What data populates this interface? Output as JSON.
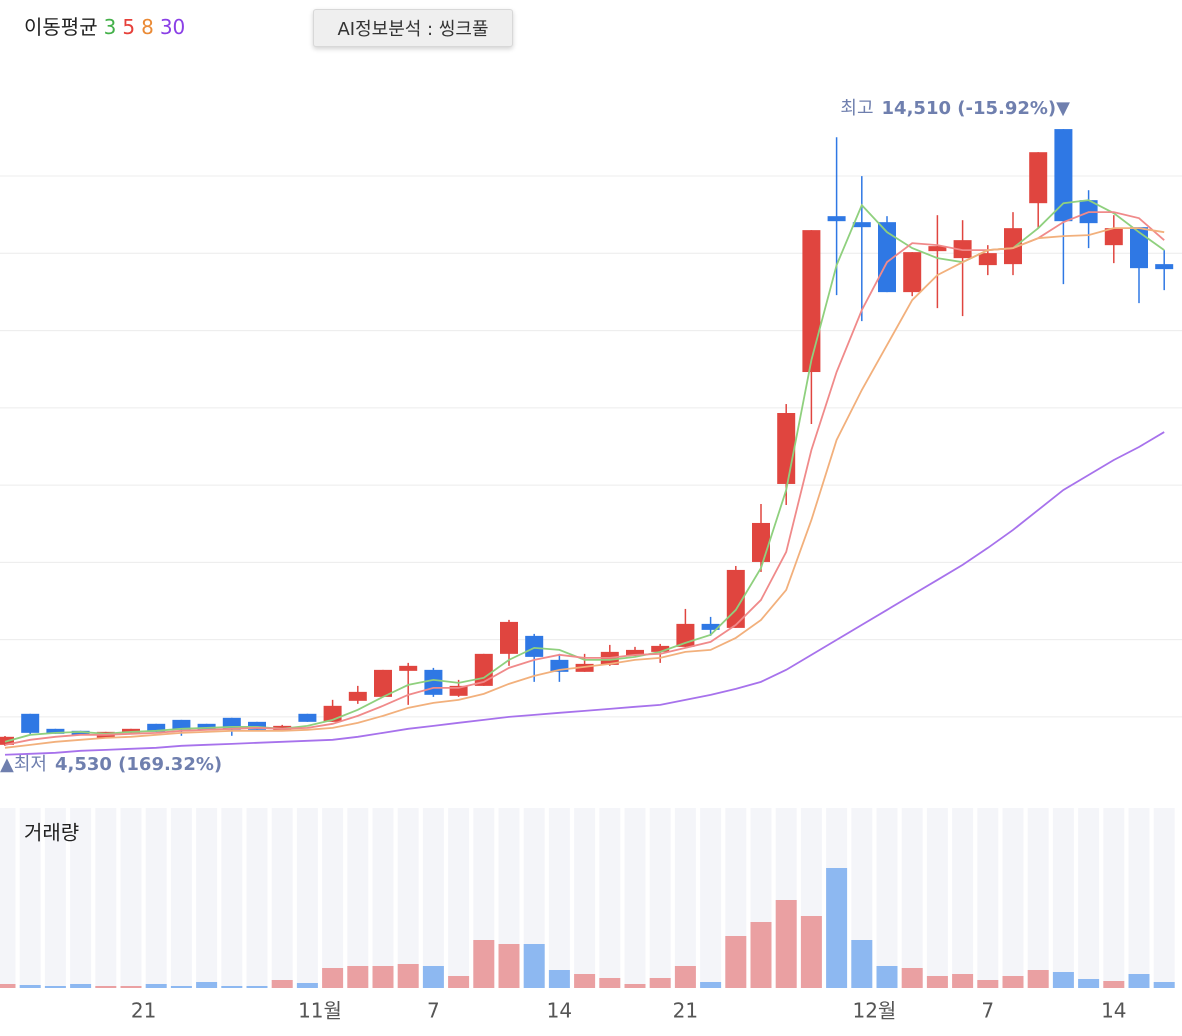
{
  "button": "AI정보분석 : 씽크풀",
  "chart_data": [
    {
      "type": "candlestick",
      "title": "이동평균",
      "ylim": [
        3800,
        16000
      ],
      "yticks": [
        5000,
        6250,
        7500,
        8750,
        10000,
        11250,
        12500,
        13750
      ],
      "grid": true,
      "up_color": "#e0453f",
      "down_color": "#2f78e4",
      "open": [
        4547,
        5049,
        4806,
        4774,
        4660,
        4741,
        4887,
        4951,
        4887,
        4984,
        4919,
        4774,
        5049,
        4919,
        5259,
        5323,
        5744,
        5760,
        5340,
        5501,
        6019,
        6310,
        5922,
        5728,
        5841,
        5986,
        6051,
        6132,
        6504,
        6439,
        7506,
        8768,
        10579,
        13101,
        13004,
        13004,
        11872,
        12535,
        12422,
        12309,
        12325,
        13311,
        14510,
        13360,
        12632,
        12923,
        12325
      ],
      "high": [
        4690,
        5049,
        4806,
        4774,
        4757,
        4806,
        4887,
        4951,
        4887,
        4984,
        4919,
        4870,
        5049,
        5275,
        5501,
        5760,
        5873,
        5792,
        5598,
        6019,
        6569,
        6342,
        6019,
        6019,
        6164,
        6132,
        6180,
        6746,
        6617,
        7441,
        8444,
        10061,
        12875,
        14378,
        13749,
        13101,
        12519,
        13117,
        13036,
        12632,
        13166,
        14136,
        14510,
        13521,
        13117,
        12923,
        12551
      ],
      "low": [
        4530,
        4720,
        4725,
        4709,
        4660,
        4741,
        4757,
        4693,
        4790,
        4693,
        4790,
        4774,
        4919,
        4919,
        5210,
        5323,
        5194,
        5323,
        5323,
        5501,
        5825,
        5566,
        5566,
        5728,
        5825,
        5986,
        5873,
        6132,
        6310,
        6439,
        7344,
        8428,
        9738,
        11823,
        11403,
        11872,
        11807,
        11613,
        11484,
        12147,
        12147,
        12907,
        12002,
        12584,
        12341,
        11694,
        11904
      ],
      "close": [
        4677,
        4741,
        4725,
        4709,
        4757,
        4806,
        4757,
        4790,
        4790,
        4790,
        4790,
        4854,
        4919,
        5178,
        5404,
        5760,
        5825,
        5356,
        5501,
        6019,
        6536,
        5970,
        5728,
        5857,
        6051,
        6083,
        6148,
        6504,
        6407,
        7377,
        8137,
        9916,
        12875,
        13020,
        12923,
        11872,
        12519,
        12616,
        12713,
        12503,
        12907,
        14136,
        13020,
        12988,
        12907,
        12260,
        12244
      ],
      "series": [
        {
          "name": "3",
          "color": "#8fd07e",
          "label_color": "#43b049",
          "values": [
            4596,
            4709,
            4741,
            4757,
            4725,
            4757,
            4774,
            4806,
            4822,
            4838,
            4838,
            4806,
            4854,
            4951,
            5113,
            5323,
            5517,
            5598,
            5550,
            5631,
            5922,
            6116,
            6083,
            5922,
            5922,
            5970,
            6051,
            6197,
            6326,
            6730,
            7409,
            8671,
            10773,
            12309,
            13279,
            12842,
            12584,
            12422,
            12357,
            12551,
            12584,
            12907,
            13311,
            13360,
            13150,
            12842,
            12551
          ]
        },
        {
          "name": "5",
          "color": "#f08a8a",
          "label_color": "#e6403a",
          "values": [
            4547,
            4628,
            4677,
            4709,
            4709,
            4725,
            4741,
            4774,
            4790,
            4806,
            4822,
            4806,
            4822,
            4887,
            5016,
            5178,
            5356,
            5469,
            5469,
            5566,
            5792,
            5922,
            6003,
            5954,
            5954,
            6003,
            6019,
            6116,
            6213,
            6488,
            6892,
            7668,
            9317,
            10579,
            11581,
            12357,
            12665,
            12632,
            12551,
            12551,
            12584,
            12745,
            13004,
            13166,
            13166,
            13069,
            12713
          ]
        },
        {
          "name": "8",
          "color": "#f2b07c",
          "label_color": "#ea8a35",
          "values": [
            4499,
            4547,
            4596,
            4628,
            4660,
            4677,
            4709,
            4741,
            4757,
            4774,
            4774,
            4774,
            4790,
            4822,
            4903,
            5016,
            5146,
            5226,
            5275,
            5372,
            5534,
            5663,
            5760,
            5809,
            5857,
            5922,
            5954,
            6051,
            6083,
            6277,
            6568,
            7054,
            8185,
            9479,
            10288,
            11015,
            11743,
            12147,
            12357,
            12551,
            12584,
            12745,
            12778,
            12794,
            12907,
            12907,
            12842
          ]
        },
        {
          "name": "30",
          "color": "#a772ec",
          "label_color": "#8a3fe6",
          "values": [
            4386,
            4402,
            4418,
            4450,
            4466,
            4483,
            4499,
            4531,
            4547,
            4563,
            4580,
            4596,
            4612,
            4628,
            4677,
            4741,
            4806,
            4854,
            4903,
            4951,
            5000,
            5032,
            5065,
            5097,
            5129,
            5162,
            5194,
            5275,
            5356,
            5453,
            5566,
            5760,
            6003,
            6245,
            6488,
            6730,
            6973,
            7215,
            7458,
            7733,
            8024,
            8347,
            8671,
            8913,
            9156,
            9366,
            9608
          ]
        }
      ],
      "annotations": [
        {
          "label": "최고",
          "text": "14,510 (-15.92%)▼"
        },
        {
          "label": "▲최저",
          "text": "4,530 (169.32%)"
        }
      ],
      "xticks": [
        {
          "value": 5.5,
          "label": "21"
        },
        {
          "value": 12.5,
          "label": "11월"
        },
        {
          "value": 17,
          "label": "7"
        },
        {
          "value": 22,
          "label": "14"
        },
        {
          "value": 27,
          "label": "21"
        },
        {
          "value": 34.5,
          "label": "12월"
        },
        {
          "value": 39,
          "label": "7"
        },
        {
          "value": 44,
          "label": "14"
        }
      ]
    },
    {
      "type": "bar",
      "title": "거래량",
      "ylim": [
        0,
        1800
      ],
      "up_color": "#eaa0a2",
      "down_color": "#8db8f1",
      "values": [
        40,
        30,
        20,
        40,
        20,
        20,
        40,
        20,
        60,
        20,
        20,
        80,
        50,
        200,
        220,
        220,
        240,
        220,
        120,
        480,
        440,
        440,
        180,
        140,
        100,
        40,
        100,
        220,
        60,
        520,
        660,
        880,
        720,
        1200,
        480,
        220,
        200,
        120,
        140,
        80,
        120,
        180,
        160,
        90,
        70,
        140,
        60
      ]
    }
  ]
}
